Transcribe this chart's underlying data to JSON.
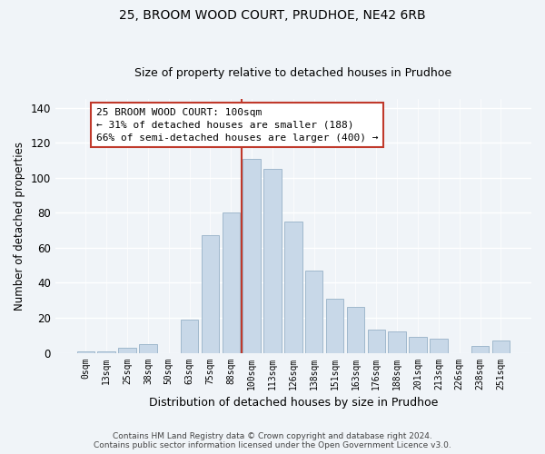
{
  "title": "25, BROOM WOOD COURT, PRUDHOE, NE42 6RB",
  "subtitle": "Size of property relative to detached houses in Prudhoe",
  "xlabel": "Distribution of detached houses by size in Prudhoe",
  "ylabel": "Number of detached properties",
  "bar_labels": [
    "0sqm",
    "13sqm",
    "25sqm",
    "38sqm",
    "50sqm",
    "63sqm",
    "75sqm",
    "88sqm",
    "100sqm",
    "113sqm",
    "126sqm",
    "138sqm",
    "151sqm",
    "163sqm",
    "176sqm",
    "188sqm",
    "201sqm",
    "213sqm",
    "226sqm",
    "238sqm",
    "251sqm"
  ],
  "bar_values": [
    1,
    1,
    3,
    5,
    0,
    19,
    67,
    80,
    111,
    105,
    75,
    47,
    31,
    26,
    13,
    12,
    9,
    8,
    0,
    4,
    7
  ],
  "bar_color": "#c8d8e8",
  "bar_edge_color": "#a0b8cc",
  "highlight_index": 8,
  "highlight_line_color": "#c0392b",
  "ylim": [
    0,
    145
  ],
  "yticks": [
    0,
    20,
    40,
    60,
    80,
    100,
    120,
    140
  ],
  "annotation_title": "25 BROOM WOOD COURT: 100sqm",
  "annotation_line1": "← 31% of detached houses are smaller (188)",
  "annotation_line2": "66% of semi-detached houses are larger (400) →",
  "annotation_box_color": "#ffffff",
  "annotation_box_edge": "#c0392b",
  "footer_line1": "Contains HM Land Registry data © Crown copyright and database right 2024.",
  "footer_line2": "Contains public sector information licensed under the Open Government Licence v3.0.",
  "background_color": "#f0f4f8",
  "title_fontsize": 10,
  "subtitle_fontsize": 9
}
